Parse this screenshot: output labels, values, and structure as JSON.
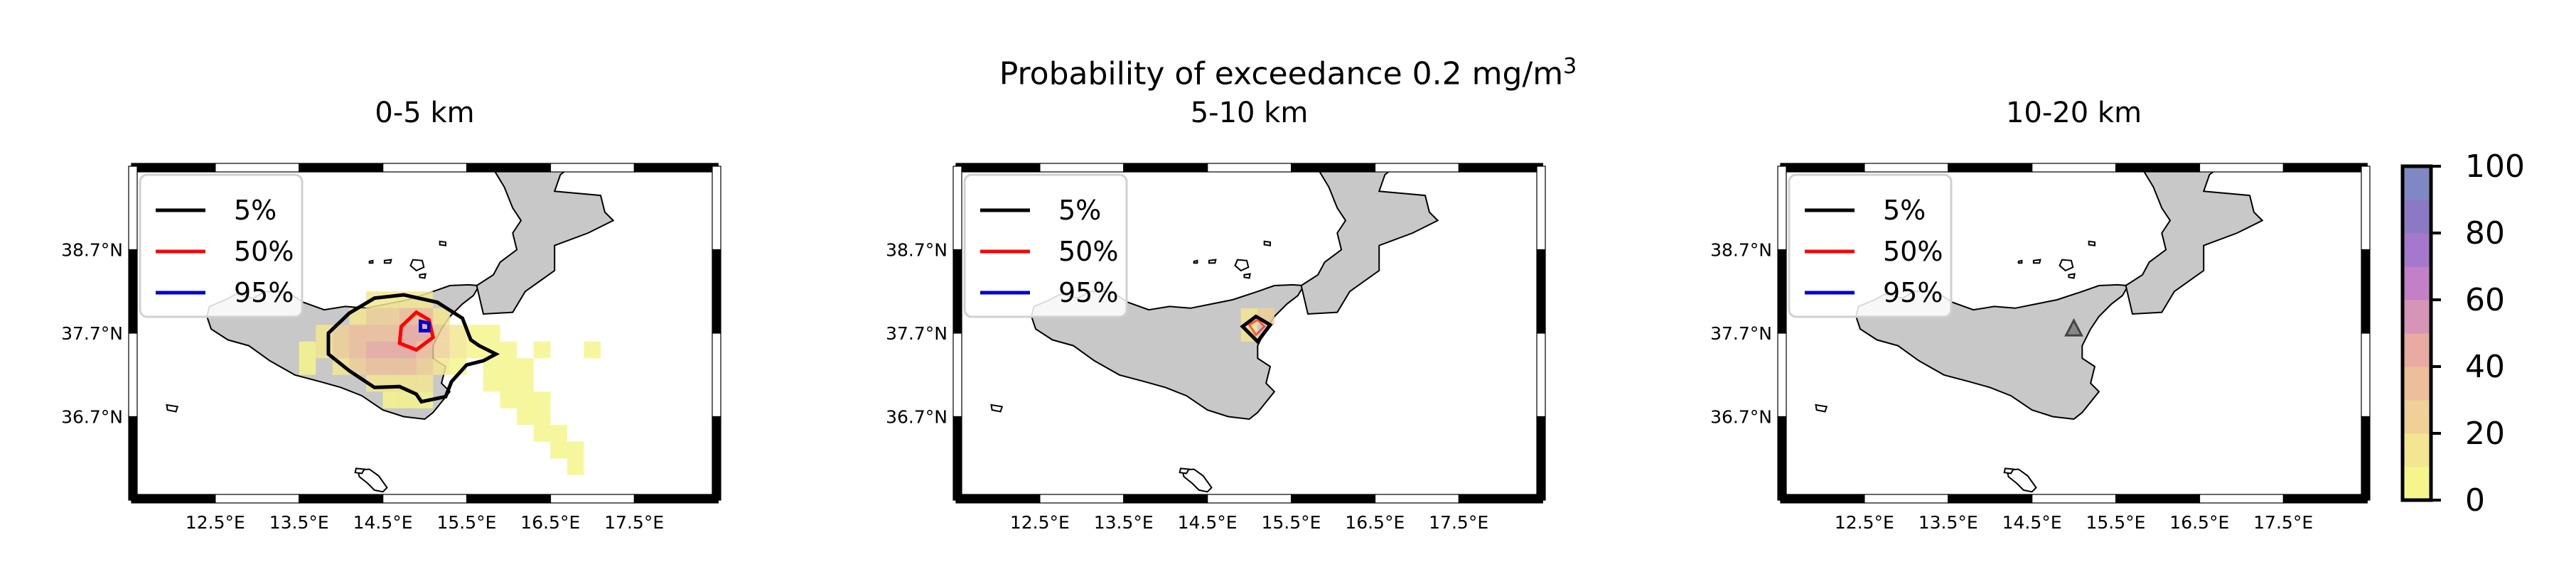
{
  "figure": {
    "suptitle_prefix": "Probability of exceedance 0.2 mg/m",
    "suptitle_sup": "3"
  },
  "panels": [
    {
      "title": "0-5 km",
      "legend": [
        "5%",
        "50%",
        "95%"
      ],
      "layer": "0-5"
    },
    {
      "title": "5-10 km",
      "legend": [
        "5%",
        "50%",
        "95%"
      ],
      "layer": "5-10"
    },
    {
      "title": "10-20 km",
      "legend": [
        "5%",
        "50%",
        "95%"
      ],
      "layer": "10-20"
    }
  ],
  "axes": {
    "lon_ticks": [
      "12.5°E",
      "13.5°E",
      "14.5°E",
      "15.5°E",
      "16.5°E",
      "17.5°E"
    ],
    "lat_ticks": [
      "38.7°N",
      "37.7°N",
      "36.7°N"
    ]
  },
  "legend_colors": {
    "5%": "#000000",
    "50%": "#ff0000",
    "95%": "#0000cc"
  },
  "colorbar": {
    "ticks": [
      "0",
      "20",
      "40",
      "60",
      "80",
      "100"
    ],
    "levels": [
      "#f5f58c",
      "#f2e690",
      "#efd096",
      "#ecbf9a",
      "#e8aaa2",
      "#d694b6",
      "#c281c6",
      "#a478cc",
      "#8c79c4",
      "#7f88c2"
    ]
  },
  "chart_data": {
    "type": "heatmap",
    "title": "Probability of exceedance 0.2 mg/m3",
    "colorbar_range": [
      0,
      100
    ],
    "xlim": [
      11.5,
      18.5
    ],
    "ylim": [
      35.7,
      39.7
    ],
    "markers": [
      {
        "lon": 15.0,
        "lat": 37.75,
        "label": "",
        "panel": "10-20 km"
      }
    ],
    "contour_levels": [
      "5%",
      "50%",
      "95%"
    ]
  }
}
